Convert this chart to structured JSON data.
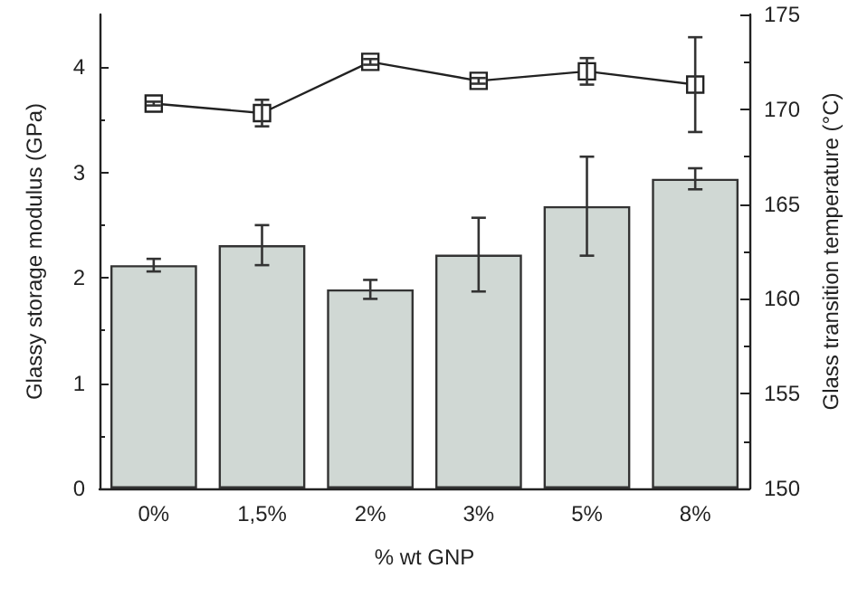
{
  "chart_data": {
    "type": "bar",
    "xlabel": "% wt GNP",
    "ylabel": "Glassy storage modulus (GPa)",
    "y2label": "Glass transition temperature (°C)",
    "categories": [
      "0%",
      "1,5%",
      "2%",
      "3%",
      "5%",
      "8%"
    ],
    "series": [
      {
        "color": "#d0d8d4",
        "values": [
          2.12,
          2.31,
          1.89,
          2.22,
          2.68,
          2.94
        ],
        "errors": [
          0.06,
          0.19,
          0.09,
          0.35,
          0.47,
          0.1
        ]
      },
      {
        "type": "line",
        "axis": "y2",
        "color": "#222222",
        "marker": "square",
        "values": [
          170.3,
          169.8,
          172.5,
          171.5,
          172.0,
          171.3
        ],
        "errors": [
          0.1,
          0.7,
          0.15,
          0.15,
          0.7,
          2.5
        ]
      }
    ],
    "ylim": [
      0,
      4.5
    ],
    "yticks": [
      0,
      1,
      2,
      3,
      4
    ],
    "y2lim": [
      150,
      175
    ],
    "y2ticks": [
      150,
      155,
      160,
      165,
      170,
      175
    ],
    "grid": false
  }
}
